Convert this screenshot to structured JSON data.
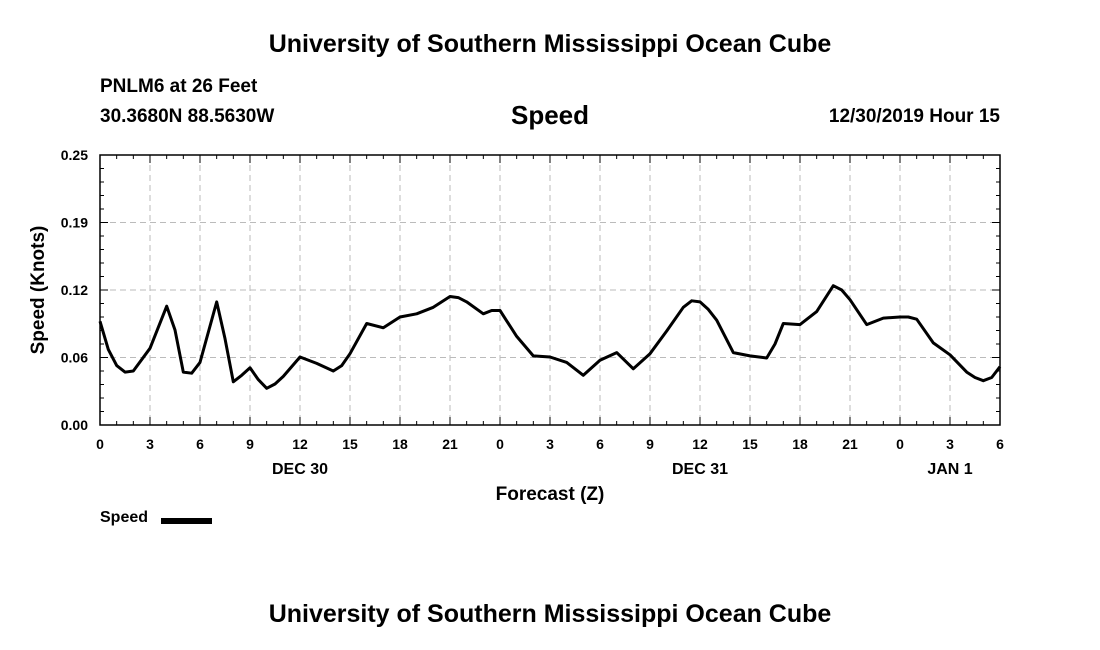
{
  "header": {
    "title": "University of Southern Mississippi Ocean Cube",
    "station": "PNLM6 at 26 Feet",
    "coords": "30.3680N 88.5630W",
    "datetime": "12/30/2019 Hour 15"
  },
  "footer": {
    "title": "University of Southern Mississippi Ocean Cube"
  },
  "legend": {
    "label": "Speed"
  },
  "colors": {
    "line": "#000000",
    "grid": "#bbbbbb"
  },
  "chart_data": {
    "type": "line",
    "title": "Speed",
    "xlabel": "Forecast (Z)",
    "ylabel": "Speed (Knots)",
    "xlim": [
      0,
      54
    ],
    "ylim": [
      0.0,
      0.25
    ],
    "grid": true,
    "y_ticks": [
      "0.00",
      "0.06",
      "0.12",
      "0.19",
      "0.25"
    ],
    "y_tick_values": [
      0.0,
      0.0625,
      0.125,
      0.1875,
      0.25
    ],
    "x_tick_values": [
      0,
      3,
      6,
      9,
      12,
      15,
      18,
      21,
      24,
      27,
      30,
      33,
      36,
      39,
      42,
      45,
      48,
      51,
      54
    ],
    "x_ticks": [
      "0",
      "3",
      "6",
      "9",
      "12",
      "15",
      "18",
      "21",
      "0",
      "3",
      "6",
      "9",
      "12",
      "15",
      "18",
      "21",
      "0",
      "3",
      "6"
    ],
    "day_labels": [
      {
        "x": 12,
        "label": "DEC 30"
      },
      {
        "x": 36,
        "label": "DEC 31"
      },
      {
        "x": 51,
        "label": "JAN 1"
      }
    ],
    "series": [
      {
        "name": "Speed",
        "x": [
          0,
          0.5,
          1,
          1.5,
          2,
          3,
          4,
          4.5,
          5,
          5.5,
          6,
          7,
          7.5,
          8,
          8.5,
          9,
          9.5,
          10,
          10.5,
          11,
          12,
          13,
          14,
          14.5,
          15,
          16,
          17,
          18,
          19,
          20,
          21,
          21.5,
          22,
          23,
          23.5,
          24,
          25,
          26,
          27,
          28,
          29,
          30,
          31,
          32,
          33,
          34,
          35,
          35.5,
          36,
          36.5,
          37,
          38,
          39,
          40,
          40.5,
          41,
          42,
          43,
          44,
          44.5,
          45,
          46,
          47,
          48,
          48.5,
          49,
          50,
          51,
          52,
          52.5,
          53,
          53.5,
          54
        ],
        "values": [
          0.096,
          0.07,
          0.055,
          0.049,
          0.05,
          0.071,
          0.11,
          0.088,
          0.049,
          0.048,
          0.058,
          0.114,
          0.08,
          0.04,
          0.046,
          0.053,
          0.042,
          0.034,
          0.038,
          0.045,
          0.063,
          0.057,
          0.05,
          0.055,
          0.066,
          0.094,
          0.09,
          0.1,
          0.103,
          0.109,
          0.119,
          0.118,
          0.114,
          0.103,
          0.106,
          0.106,
          0.082,
          0.064,
          0.063,
          0.058,
          0.046,
          0.06,
          0.067,
          0.052,
          0.066,
          0.087,
          0.109,
          0.115,
          0.114,
          0.107,
          0.097,
          0.067,
          0.064,
          0.062,
          0.075,
          0.094,
          0.093,
          0.105,
          0.129,
          0.125,
          0.116,
          0.093,
          0.099,
          0.1,
          0.1,
          0.098,
          0.076,
          0.065,
          0.049,
          0.044,
          0.041,
          0.044,
          0.054
        ]
      }
    ]
  }
}
